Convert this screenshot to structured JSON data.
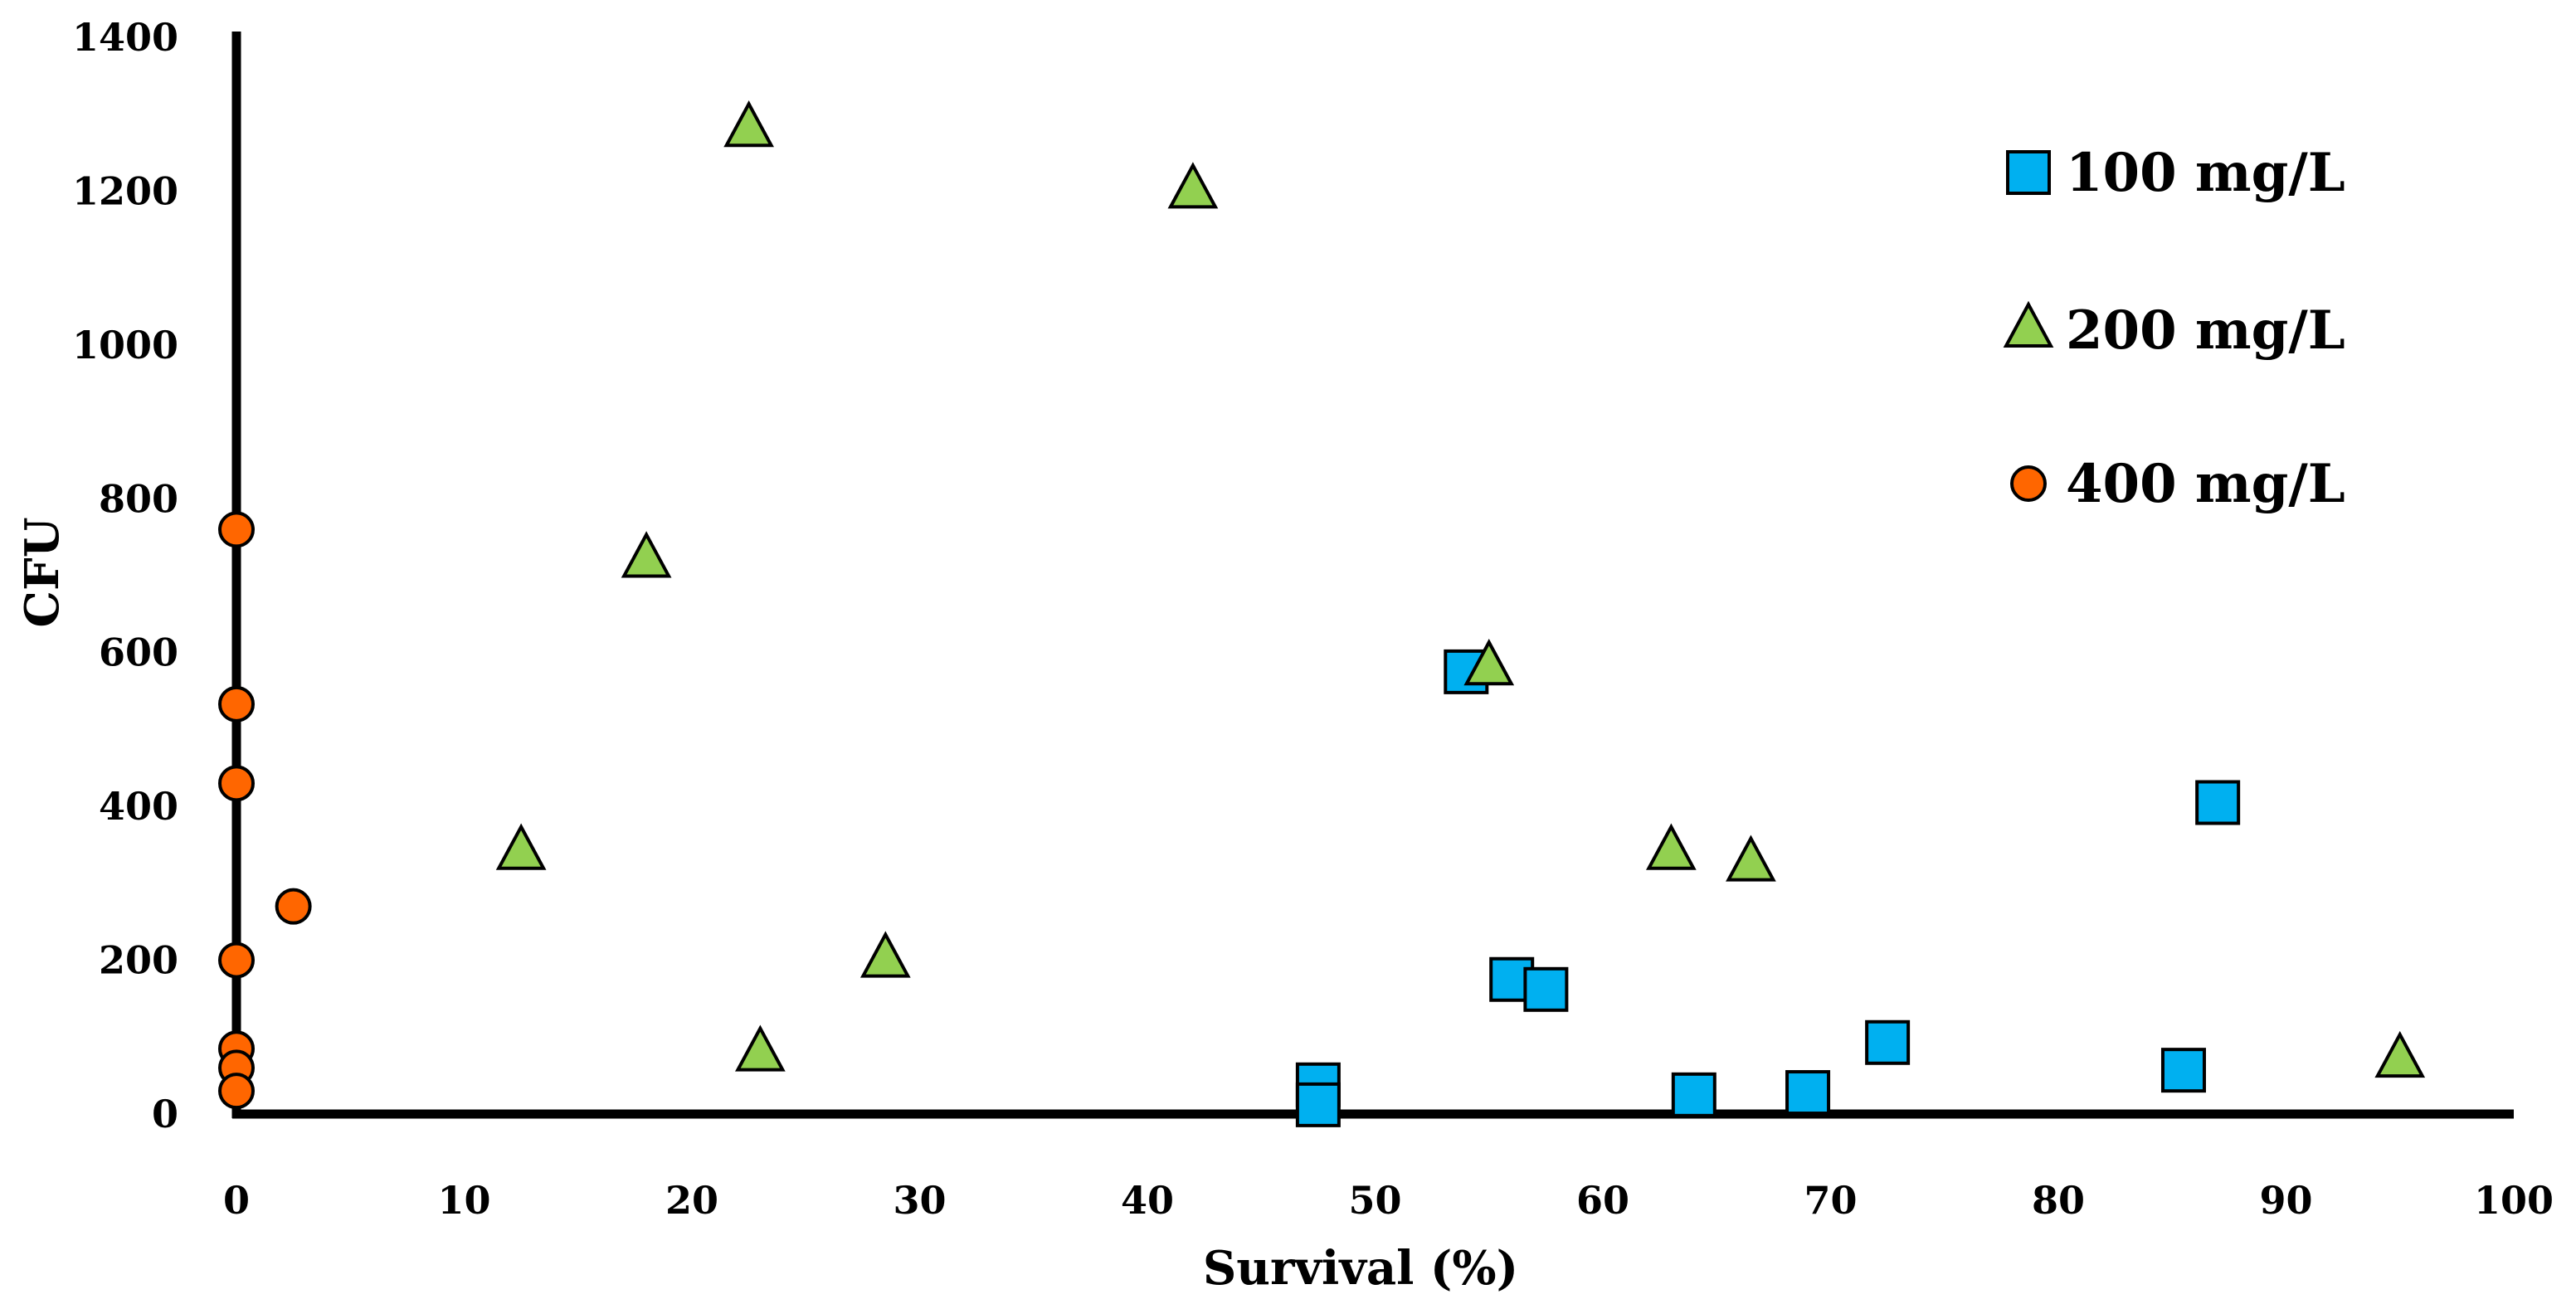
{
  "chart_data": {
    "type": "scatter",
    "title": "",
    "xlabel": "Survival (%)",
    "ylabel": "CFU",
    "xlim": [
      0,
      100
    ],
    "ylim": [
      0,
      1400
    ],
    "xticks": [
      0,
      10,
      20,
      30,
      40,
      50,
      60,
      70,
      80,
      90,
      100
    ],
    "yticks": [
      0,
      200,
      400,
      600,
      800,
      1000,
      1200,
      1400
    ],
    "grid": false,
    "legend_position": "top-right",
    "series": [
      {
        "name": "100 mg/L",
        "marker": "square",
        "color": "#00B0F0",
        "points": [
          {
            "x": 47.5,
            "y": 38
          },
          {
            "x": 47.5,
            "y": 12
          },
          {
            "x": 54.0,
            "y": 575
          },
          {
            "x": 56.0,
            "y": 175
          },
          {
            "x": 57.5,
            "y": 162
          },
          {
            "x": 64.0,
            "y": 25
          },
          {
            "x": 69.0,
            "y": 28
          },
          {
            "x": 72.5,
            "y": 93
          },
          {
            "x": 85.5,
            "y": 57
          },
          {
            "x": 87.0,
            "y": 405
          }
        ]
      },
      {
        "name": "200 mg/L",
        "marker": "triangle",
        "color": "#92D050",
        "points": [
          {
            "x": 12.5,
            "y": 340
          },
          {
            "x": 18.0,
            "y": 720
          },
          {
            "x": 22.5,
            "y": 1280
          },
          {
            "x": 23.0,
            "y": 78
          },
          {
            "x": 28.5,
            "y": 200
          },
          {
            "x": 42.0,
            "y": 1200
          },
          {
            "x": 55.0,
            "y": 580
          },
          {
            "x": 63.0,
            "y": 340
          },
          {
            "x": 66.5,
            "y": 325
          },
          {
            "x": 95.0,
            "y": 70
          }
        ]
      },
      {
        "name": "400 mg/L",
        "marker": "circle",
        "color": "#FF6600",
        "points": [
          {
            "x": 0,
            "y": 760
          },
          {
            "x": 0,
            "y": 533
          },
          {
            "x": 0,
            "y": 430
          },
          {
            "x": 2.5,
            "y": 270
          },
          {
            "x": 0,
            "y": 200
          },
          {
            "x": 0,
            "y": 85
          },
          {
            "x": 0,
            "y": 60
          },
          {
            "x": 0,
            "y": 30
          }
        ]
      }
    ]
  }
}
